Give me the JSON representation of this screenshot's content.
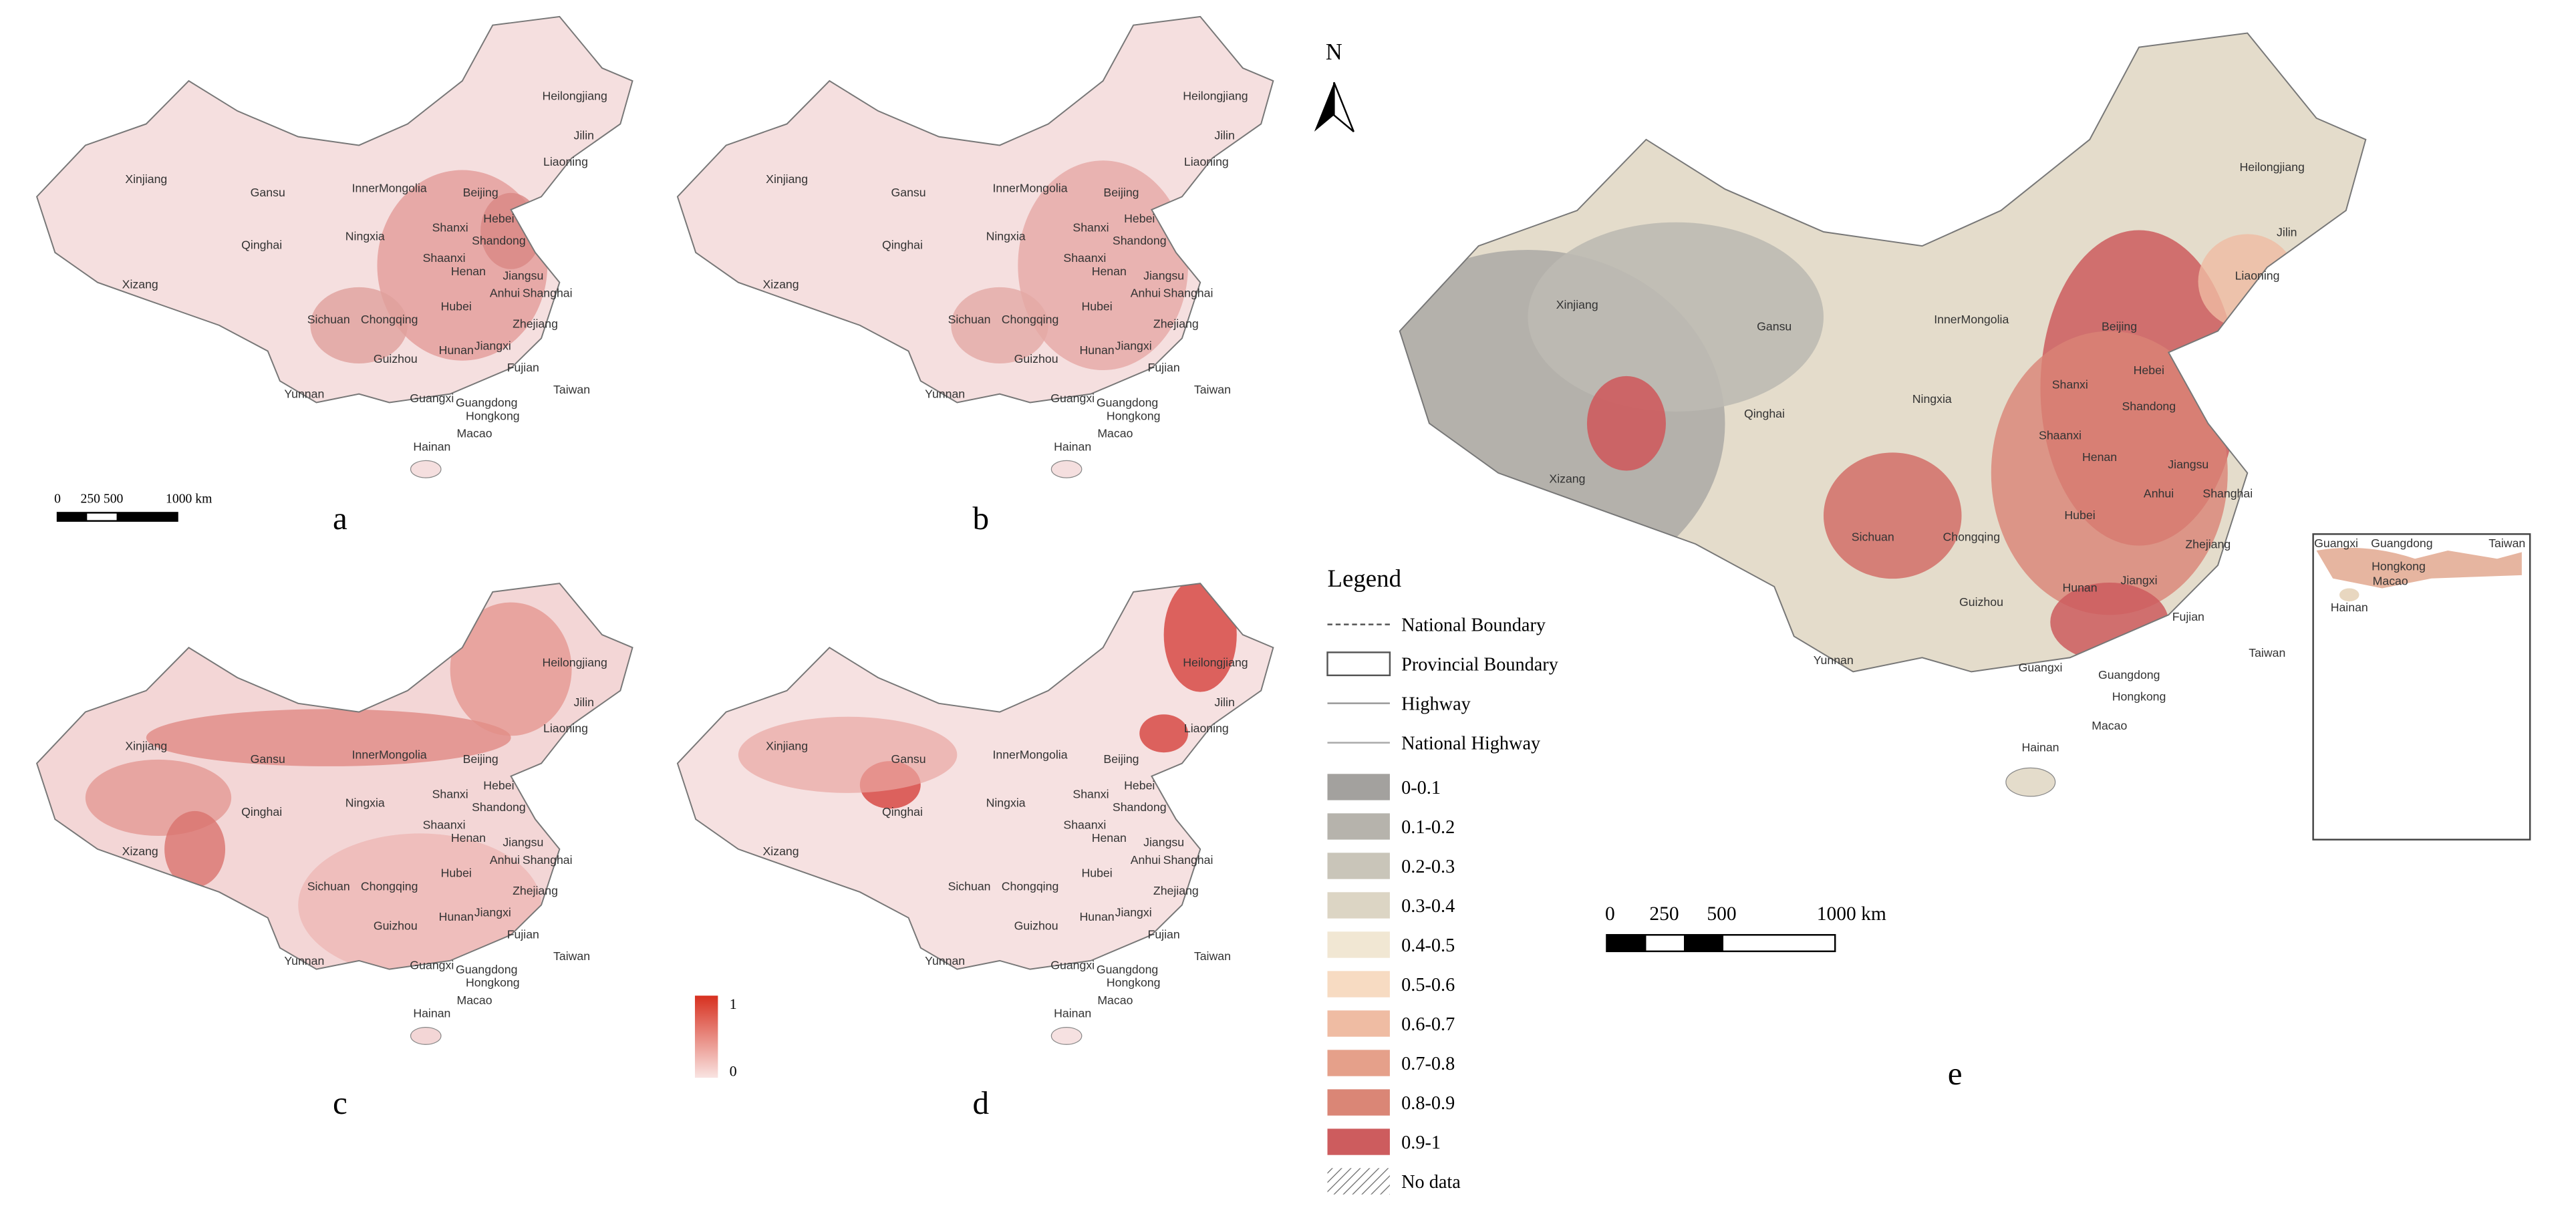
{
  "north": "N",
  "panels": [
    {
      "letter": "a",
      "labels": [
        "Heilongjiang",
        "Jilin",
        "Liaoning",
        "Xinjiang",
        "Gansu",
        "InnerMongolia",
        "Beijing",
        "Hebei",
        "Shanxi",
        "Ningxia",
        "Qinghai",
        "Shandong",
        "Shaanxi",
        "Henan",
        "Jiangsu",
        "Shanghai",
        "Anhui",
        "Xizang",
        "Sichuan",
        "Chongqing",
        "Hubei",
        "Zhejiang",
        "Guizhou",
        "Hunan",
        "Jiangxi",
        "Fujian",
        "Yunnan",
        "Guangxi",
        "Guangdong",
        "Taiwan",
        "Hongkong",
        "Macao",
        "Hainan"
      ]
    },
    {
      "letter": "b",
      "labels": [
        "Heilongjiang",
        "Jilin",
        "Liaoning",
        "Xinjiang",
        "Gansu",
        "InnerMongolia",
        "Beijing",
        "Hebei",
        "Shanxi",
        "Ningxia",
        "Qinghai",
        "Shandong",
        "Shaanxi",
        "Henan",
        "Jiangsu",
        "Shanghai",
        "Anhui",
        "Xizang",
        "Sichuan",
        "Chongqing",
        "Hubei",
        "Zhejiang",
        "Guizhou",
        "Hunan",
        "Jiangxi",
        "Fujian",
        "Yunnan",
        "Guangxi",
        "Guangdong",
        "Taiwan",
        "Hongkong",
        "Macao",
        "Hainan"
      ]
    },
    {
      "letter": "c",
      "labels": [
        "Heilongjiang",
        "Jilin",
        "Liaoning",
        "Xinjiang",
        "Gansu",
        "InnerMongolia",
        "Beijing",
        "Hebei",
        "Shanxi",
        "Ningxia",
        "Qinghai",
        "Shandong",
        "Shaanxi",
        "Henan",
        "Jiangsu",
        "Shanghai",
        "Anhui",
        "Xizang",
        "Sichuan",
        "Chongqing",
        "Hubei",
        "Zhejiang",
        "Guizhou",
        "Hunan",
        "Jiangxi",
        "Fujian",
        "Yunnan",
        "Guangxi",
        "Guangdong",
        "Taiwan",
        "Hongkong",
        "Macao",
        "Hainan"
      ]
    },
    {
      "letter": "d",
      "labels": [
        "Heilongjiang",
        "Jilin",
        "Liaoning",
        "Xinjiang",
        "Gansu",
        "InnerMongolia",
        "Beijing",
        "Hebei",
        "Shanxi",
        "Ningxia",
        "Qinghai",
        "Shandong",
        "Shaanxi",
        "Henan",
        "Jiangsu",
        "Shanghai",
        "Anhui",
        "Xizang",
        "Sichuan",
        "Chongqing",
        "Hubei",
        "Zhejiang",
        "Guizhou",
        "Hunan",
        "Jiangxi",
        "Fujian",
        "Yunnan",
        "Guangxi",
        "Guangdong",
        "Taiwan",
        "Hongkong",
        "Macao",
        "Hainan"
      ]
    },
    {
      "letter": "e",
      "labels": [
        "Heilongjiang",
        "Jilin",
        "Liaoning",
        "Xinjiang",
        "Gansu",
        "InnerMongolia",
        "Beijing",
        "Hebei",
        "Shanxi",
        "Ningxia",
        "Qinghai",
        "Shandong",
        "Shaanxi",
        "Henan",
        "Jiangsu",
        "Shanghai",
        "Anhui",
        "Xizang",
        "Sichuan",
        "Chongqing",
        "Hubei",
        "Zhejiang",
        "Guizhou",
        "Hunan",
        "Jiangxi",
        "Fujian",
        "Yunnan",
        "Guangxi",
        "Guangdong",
        "Taiwan",
        "Hongkong",
        "Macao",
        "Hainan"
      ]
    }
  ],
  "scale_bar_small": [
    "0",
    "250 500",
    "1000 km"
  ],
  "scale_bar_large": [
    "0",
    "250",
    "500",
    "1000 km"
  ],
  "colorbar": {
    "max": "1",
    "min": "0"
  },
  "legend": {
    "title": "Legend",
    "lines": [
      "National Boundary",
      "Provincial Boundary",
      "Highway",
      "National Highway"
    ],
    "classes": [
      {
        "label": "0-0.1",
        "color": "#a3a19e"
      },
      {
        "label": "0.1-0.2",
        "color": "#b6b3ac"
      },
      {
        "label": "0.2-0.3",
        "color": "#c9c5b9"
      },
      {
        "label": "0.3-0.4",
        "color": "#dcd5c4"
      },
      {
        "label": "0.4-0.5",
        "color": "#f1e7d3"
      },
      {
        "label": "0.5-0.6",
        "color": "#f7dbc2"
      },
      {
        "label": "0.6-0.7",
        "color": "#efbca3"
      },
      {
        "label": "0.7-0.8",
        "color": "#e5a08a"
      },
      {
        "label": "0.8-0.9",
        "color": "#da8676"
      },
      {
        "label": "0.9-1",
        "color": "#cd5c5e"
      }
    ],
    "no_data": "No data"
  },
  "inset": {
    "labels": [
      "Guangxi",
      "Guangdong",
      "Taiwan",
      "Hongkong",
      "Macao",
      "Hainan"
    ]
  }
}
